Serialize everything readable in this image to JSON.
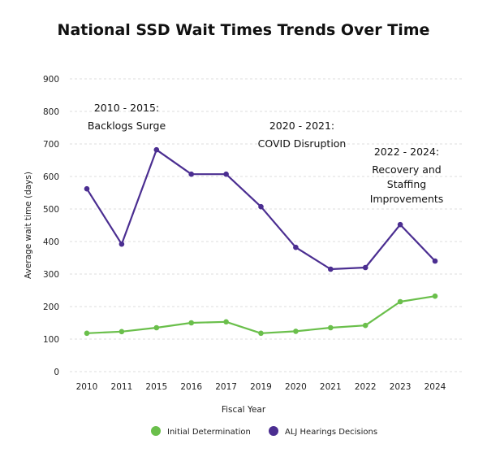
{
  "chart_data": {
    "type": "line",
    "title": "National SSD Wait Times Trends Over Time",
    "xlabel": "Fiscal Year",
    "ylabel": "Average wait time (days)",
    "ylim": [
      0,
      900
    ],
    "yticks": [
      0,
      100,
      200,
      300,
      400,
      500,
      600,
      700,
      800,
      900
    ],
    "grid": true,
    "legend_position": "bottom",
    "categories": [
      "2010",
      "2011",
      "2015",
      "2016",
      "2017",
      "2019",
      "2020",
      "2021",
      "2022",
      "2023",
      "2024"
    ],
    "series": [
      {
        "name": "Initial Determination",
        "color": "#6abf4b",
        "values": [
          118,
          123,
          135,
          150,
          153,
          118,
          124,
          135,
          142,
          215,
          232
        ]
      },
      {
        "name": "ALJ Hearings Decisions",
        "color": "#4b2e91",
        "values": [
          562,
          392,
          682,
          607,
          607,
          507,
          382,
          315,
          320,
          452,
          340
        ]
      }
    ],
    "annotations": [
      {
        "lines": [
          "2010 - 2015:",
          "Backlogs Surge"
        ],
        "x_category": "2011",
        "y_value": 800
      },
      {
        "lines": [
          "2020 - 2021:",
          "COVID Disruption"
        ],
        "x_category": "2020",
        "y_value": 745
      },
      {
        "lines": [
          "2022 - 2024:",
          "Recovery and",
          "Staffing",
          "Improvements"
        ],
        "x_category": "2023",
        "y_value": 665
      }
    ]
  }
}
